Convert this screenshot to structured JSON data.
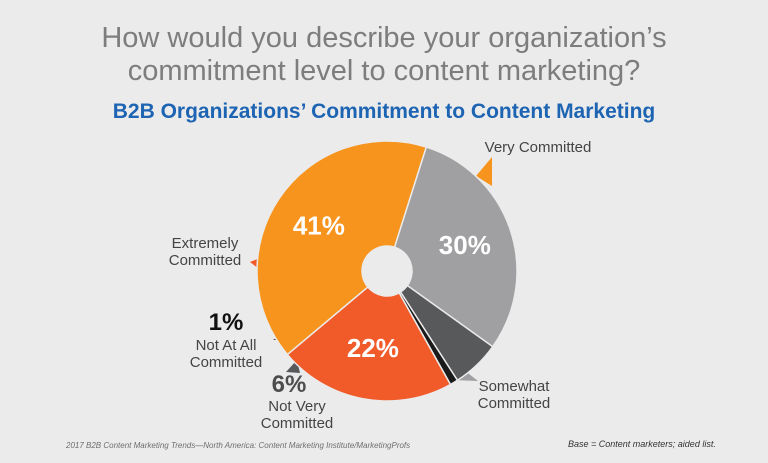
{
  "question": {
    "line1": "How would you describe your organization’s",
    "line2": "commitment level to content marketing?"
  },
  "chart_data": {
    "type": "pie",
    "title": "B2B Organizations’ Commitment to Content Marketing",
    "donut": true,
    "slices": [
      {
        "label_lines": [
          "Very Committed"
        ],
        "value": 41,
        "value_label": "41%",
        "color": "#f7941d"
      },
      {
        "label_lines": [
          "Somewhat",
          "Committed"
        ],
        "value": 30,
        "value_label": "30%",
        "color": "#a0a0a2"
      },
      {
        "label_lines": [
          "Not Very",
          "Committed"
        ],
        "value": 6,
        "value_label": "6%",
        "color": "#58595b"
      },
      {
        "label_lines": [
          "Not At All",
          "Committed"
        ],
        "value": 1,
        "value_label": "1%",
        "color": "#1a1a1a"
      },
      {
        "label_lines": [
          "Extremely",
          "Committed"
        ],
        "value": 22,
        "value_label": "22%",
        "color": "#f15a29"
      }
    ]
  },
  "footer": {
    "source": "2017 B2B Content Marketing Trends—North America: Content Marketing Institute/MarketingProfs",
    "base": "Base = Content marketers; aided list."
  }
}
